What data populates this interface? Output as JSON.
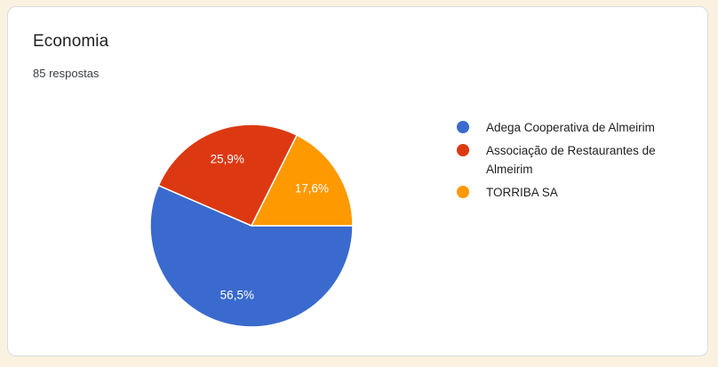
{
  "page": {
    "background": "#FAF1E0"
  },
  "card": {
    "title": "Economia",
    "responses_count": "85 respostas"
  },
  "chart_data": {
    "type": "pie",
    "title": "Economia",
    "subtitle": "85 respostas",
    "total_responses": 85,
    "legend_position": "right",
    "start_angle_deg": 0,
    "direction": "clockwise",
    "label_radius_ratio": 0.7,
    "slices": [
      {
        "label": "Adega Cooperativa de Almeirim",
        "value_percent": 56.5,
        "display": "56,5%",
        "color": "#3A6ACD"
      },
      {
        "label": "Associação de Restaurantes de Almeirim",
        "value_percent": 25.9,
        "display": "25,9%",
        "color": "#DC3912"
      },
      {
        "label": "TORRIBA SA",
        "value_percent": 17.6,
        "display": "17,6%",
        "color": "#FF9900"
      }
    ]
  }
}
